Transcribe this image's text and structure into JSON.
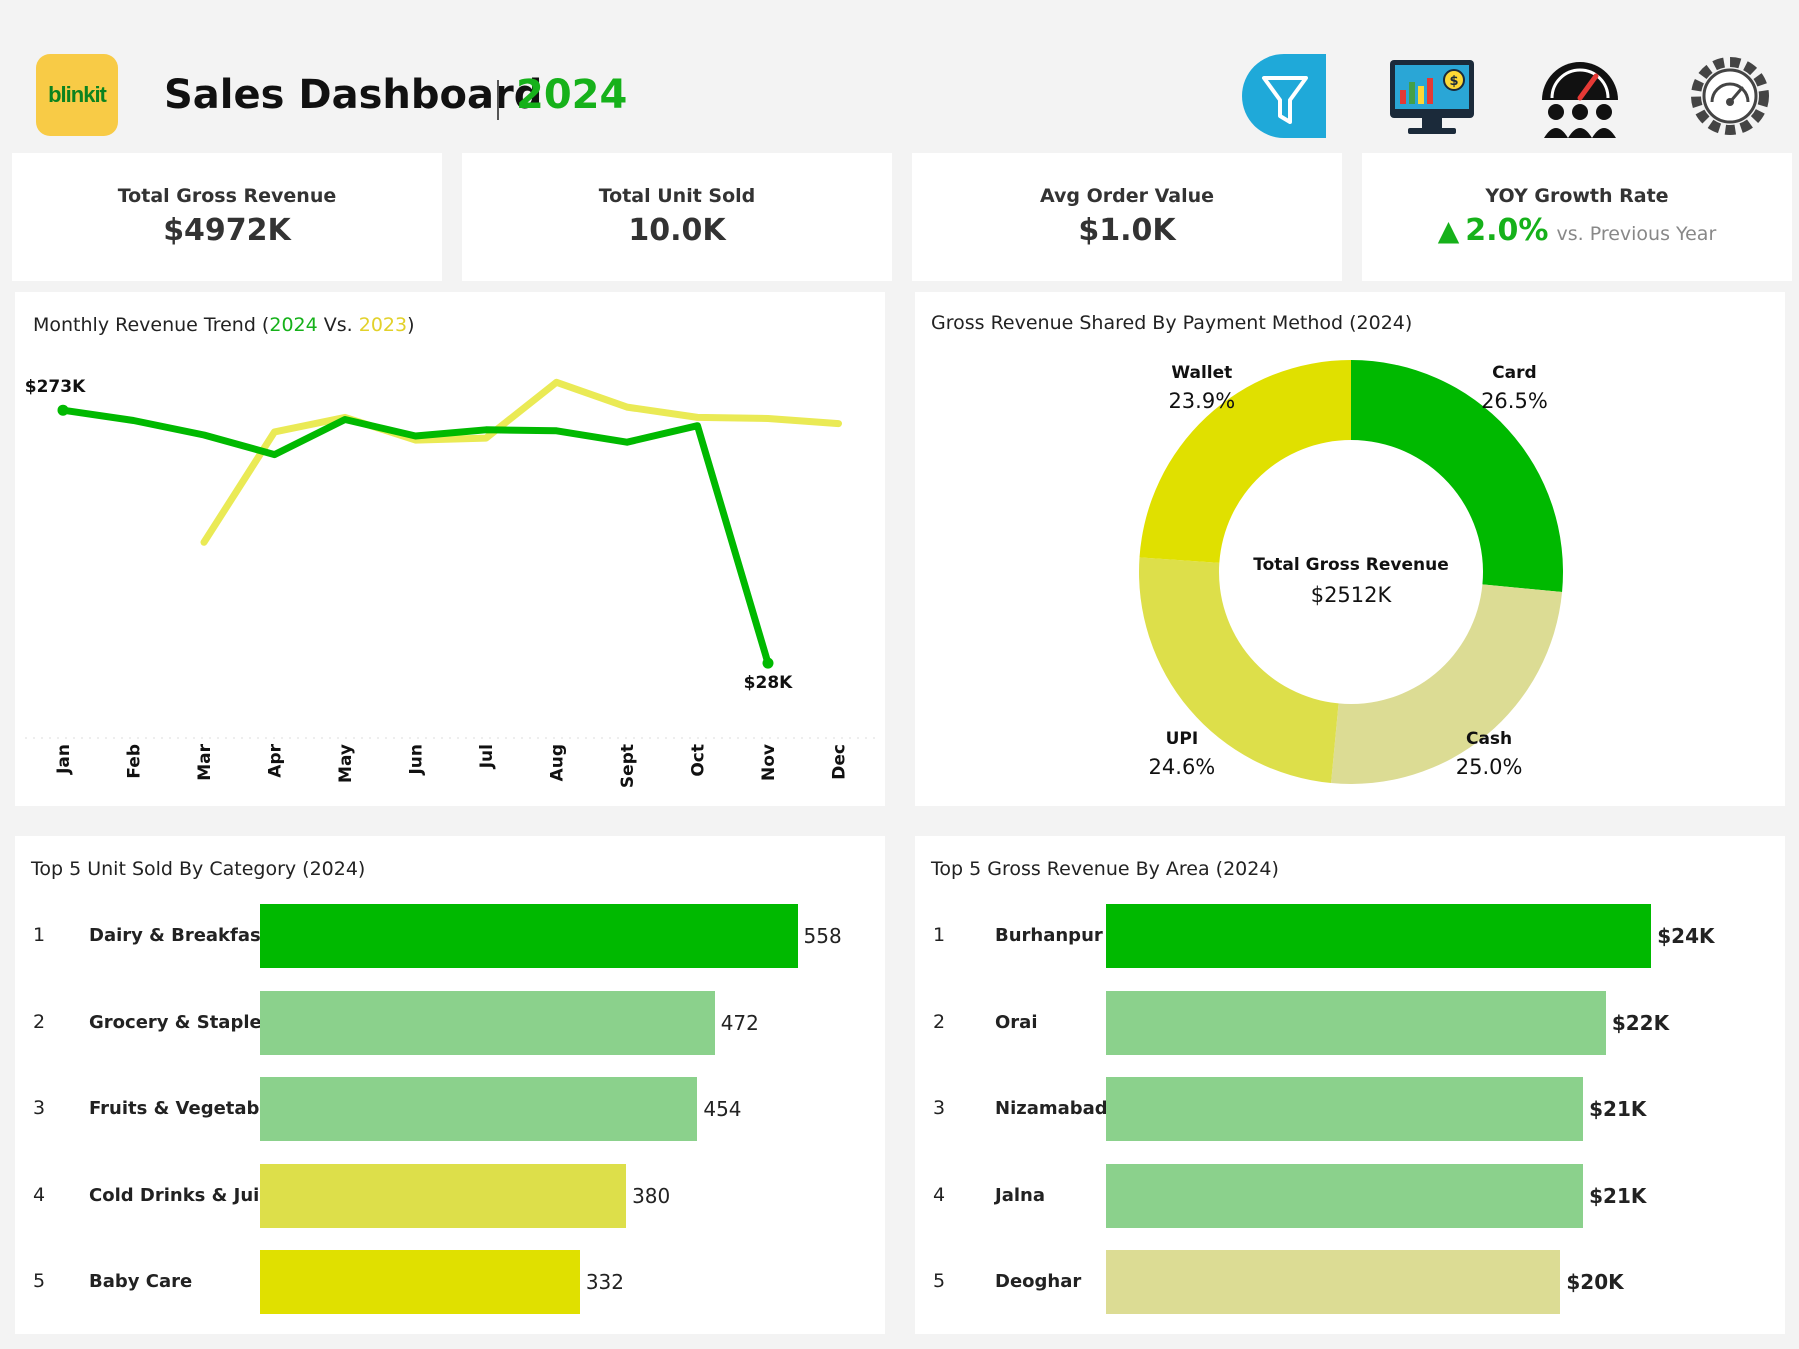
{
  "header": {
    "logo_text": "blinkit",
    "title": "Sales Dashboard",
    "year": "2024",
    "icons": [
      "filter-icon",
      "monitor-analytics-icon",
      "performance-gauge-team-icon",
      "settings-gauge-icon"
    ]
  },
  "kpis": {
    "gross_revenue": {
      "label": "Total Gross Revenue",
      "value": "$4972K"
    },
    "unit_sold": {
      "label": "Total Unit Sold",
      "value": "10.0K"
    },
    "avg_order": {
      "label": "Avg Order Value",
      "value": "$1.0K"
    },
    "yoy": {
      "label": "YOY Growth Rate",
      "arrow": "▲",
      "value": "2.0%",
      "sub": "vs. Previous Year"
    }
  },
  "colors": {
    "green": "#00b900",
    "light_green": "#8bd18c",
    "yellow": "#e0e000",
    "yellow_soft": "#dddf4a",
    "yellow_line": "#eaea55",
    "beige": "#dcdc94"
  },
  "chart_data": [
    {
      "type": "line",
      "title_parts": [
        "Monthly Revenue Trend (",
        "2024",
        " Vs. ",
        "2023",
        ")"
      ],
      "x": [
        "Jan",
        "Feb",
        "Mar",
        "Apr",
        "May",
        "Jun",
        "Jul",
        "Aug",
        "Sept",
        "Oct",
        "Nov",
        "Dec"
      ],
      "series": [
        {
          "name": "2024",
          "values": [
            273,
            263,
            249,
            230,
            264,
            248,
            254,
            253,
            242,
            258,
            28,
            null
          ],
          "color": "#00b900"
        },
        {
          "name": "2023",
          "values": [
            null,
            null,
            145,
            252,
            266,
            244,
            246,
            300,
            276,
            266,
            265,
            260
          ],
          "color": "#eaea55"
        }
      ],
      "data_labels": [
        {
          "series": "2024",
          "x": "Jan",
          "text": "$273K"
        },
        {
          "series": "2024",
          "x": "Nov",
          "text": "$28K"
        }
      ],
      "ylim": [
        0,
        310
      ],
      "grid": false
    },
    {
      "type": "pie",
      "variant": "donut",
      "title": "Gross Revenue Shared By Payment Method (2024)",
      "center_label": "Total Gross Revenue",
      "center_value": "$2512K",
      "slices": [
        {
          "label": "Card",
          "value": 26.5,
          "display": "26.5%",
          "color": "#00b900"
        },
        {
          "label": "Cash",
          "value": 25.0,
          "display": "25.0%",
          "color": "#dcdc94"
        },
        {
          "label": "UPI",
          "value": 24.6,
          "display": "24.6%",
          "color": "#dddf4a"
        },
        {
          "label": "Wallet",
          "value": 23.9,
          "display": "23.9%",
          "color": "#e0e000"
        }
      ]
    },
    {
      "type": "bar",
      "orientation": "horizontal",
      "title": "Top 5 Unit Sold By Category (2024)",
      "categories": [
        "Dairy & Breakfast",
        "Grocery & Staples",
        "Fruits & Vegetables",
        "Cold Drinks & Juices",
        "Baby Care"
      ],
      "ranks": [
        "1",
        "2",
        "3",
        "4",
        "5"
      ],
      "values": [
        558,
        472,
        454,
        380,
        332
      ],
      "value_labels": [
        "558",
        "472",
        "454",
        "380",
        "332"
      ],
      "colors": [
        "#00b900",
        "#8bd18c",
        "#8bd18c",
        "#dddf4a",
        "#e0e000"
      ],
      "xlim": [
        0,
        600
      ]
    },
    {
      "type": "bar",
      "orientation": "horizontal",
      "title": "Top 5 Gross Revenue By Area (2024)",
      "categories": [
        "Burhanpur",
        "Orai",
        "Nizamabad",
        "Jalna",
        "Deoghar"
      ],
      "ranks": [
        "1",
        "2",
        "3",
        "4",
        "5"
      ],
      "values": [
        24,
        22,
        21,
        21,
        20
      ],
      "value_labels": [
        "$24K",
        "$22K",
        "$21K",
        "$21K",
        "$20K"
      ],
      "colors": [
        "#00b900",
        "#8bd18c",
        "#8bd18c",
        "#8bd18c",
        "#dcdc94"
      ],
      "xlim": [
        0,
        25
      ]
    }
  ]
}
